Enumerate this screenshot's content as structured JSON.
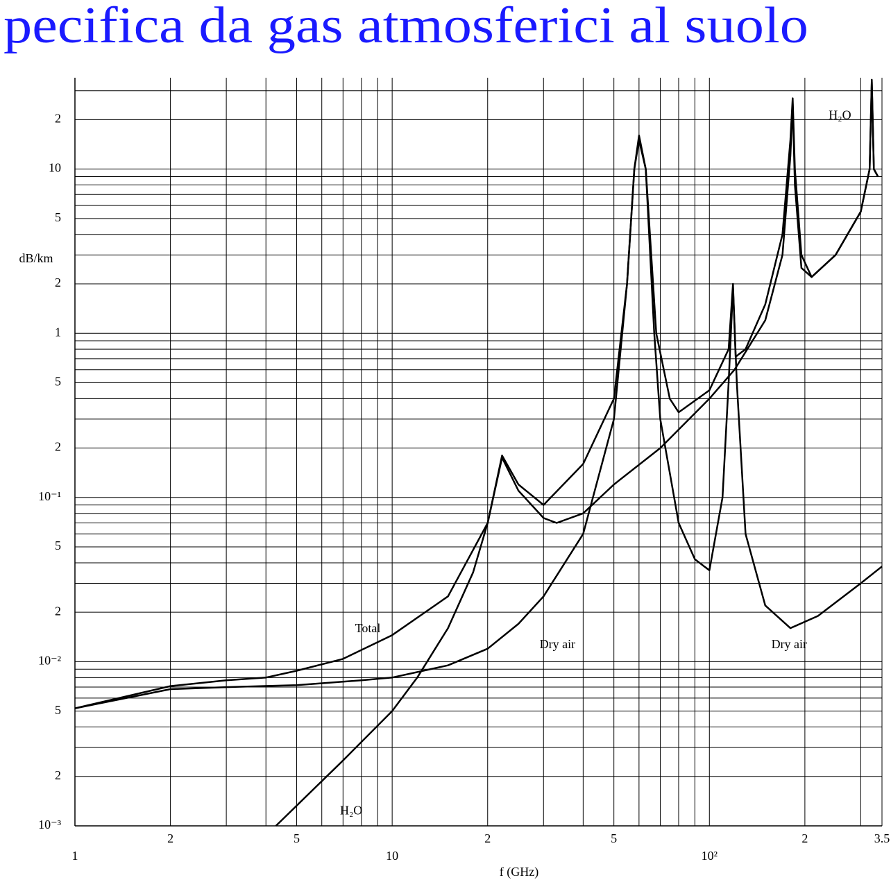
{
  "chart_data": {
    "type": "line",
    "title": "pecifica da gas atmosferici al suolo",
    "xlabel": "f (GHz)",
    "ylabel": "dB/km",
    "log_x": true,
    "log_y": true,
    "grid": true,
    "xlim": [
      1,
      350
    ],
    "ylim": [
      0.001,
      36
    ],
    "xticks": [
      1,
      2,
      5,
      10,
      {
        "value": 20,
        "label": "2"
      },
      {
        "value": 50,
        "label": "5"
      },
      {
        "value": 100,
        "label": "10²"
      },
      {
        "value": 200,
        "label": "2"
      },
      {
        "value": 350,
        "label": "3.5"
      }
    ],
    "xminor": [
      3,
      4,
      6,
      7,
      8,
      9,
      30,
      40,
      60,
      70,
      80,
      90,
      300
    ],
    "yticks": [
      {
        "value": 0.001,
        "label": "10⁻³"
      },
      {
        "value": 0.002,
        "label": "2"
      },
      {
        "value": 0.005,
        "label": "5"
      },
      {
        "value": 0.01,
        "label": "10⁻²"
      },
      {
        "value": 0.02,
        "label": "2"
      },
      {
        "value": 0.05,
        "label": "5"
      },
      {
        "value": 0.1,
        "label": "10⁻¹"
      },
      {
        "value": 0.2,
        "label": "2"
      },
      {
        "value": 0.5,
        "label": "5"
      },
      1,
      2,
      5,
      10,
      {
        "value": 20,
        "label": "2"
      }
    ],
    "yminor": [
      0.003,
      0.004,
      0.006,
      0.007,
      0.008,
      0.009,
      0.03,
      0.04,
      0.06,
      0.07,
      0.08,
      0.09,
      0.3,
      0.4,
      0.6,
      0.7,
      0.8,
      0.9,
      3,
      4,
      6,
      7,
      8,
      9,
      30
    ],
    "series": [
      {
        "color": "#000000",
        "x": [
          1,
          2,
          3,
          4,
          5,
          7,
          10,
          15,
          20,
          22.2,
          25,
          30,
          40,
          50,
          55,
          58,
          60,
          63,
          68,
          75,
          80,
          100,
          115,
          118.7,
          121,
          130,
          150,
          170,
          180,
          183,
          186,
          195,
          210,
          250,
          300,
          320,
          325,
          330,
          340
        ],
        "values": [
          0.0052,
          0.0071,
          0.0077,
          0.008,
          0.0088,
          0.0104,
          0.0145,
          0.025,
          0.07,
          0.18,
          0.12,
          0.09,
          0.16,
          0.4,
          2,
          10,
          16,
          10,
          1,
          0.4,
          0.33,
          0.45,
          0.8,
          2,
          0.72,
          0.8,
          1.5,
          4,
          15,
          27,
          10,
          3,
          2.2,
          3,
          5.5,
          10,
          35,
          10,
          9
        ]
      },
      {
        "color": "#000000",
        "x": [
          1,
          2,
          3,
          5,
          8,
          10,
          15,
          20,
          25,
          30,
          40,
          50,
          55,
          58,
          60,
          63,
          67,
          70,
          80,
          90,
          100,
          110,
          115,
          118.7,
          122,
          130,
          150,
          180,
          220,
          300,
          350
        ],
        "values": [
          0.0052,
          0.0068,
          0.007,
          0.0072,
          0.0077,
          0.008,
          0.0095,
          0.012,
          0.017,
          0.025,
          0.06,
          0.3,
          2,
          10,
          15,
          10,
          1,
          0.3,
          0.07,
          0.042,
          0.036,
          0.1,
          0.5,
          1.9,
          0.5,
          0.06,
          0.022,
          0.016,
          0.019,
          0.03,
          0.038
        ]
      },
      {
        "color": "#000000",
        "x": [
          4.3,
          7,
          10,
          12,
          15,
          18,
          20,
          22.2,
          25,
          30,
          33,
          40,
          50,
          70,
          100,
          120,
          150,
          170,
          180,
          183,
          186,
          195,
          210,
          250,
          300,
          320,
          325,
          330,
          340
        ],
        "values": [
          0.001,
          0.0025,
          0.005,
          0.008,
          0.016,
          0.035,
          0.07,
          0.175,
          0.11,
          0.075,
          0.07,
          0.08,
          0.12,
          0.2,
          0.4,
          0.6,
          1.2,
          3,
          12,
          25,
          8,
          2.5,
          2.2,
          3,
          5.5,
          10,
          34,
          10,
          9
        ]
      }
    ],
    "annotations": [
      {
        "text": "Total",
        "x": 8.38,
        "y": 0.0157
      },
      {
        "text": "Dry air",
        "x": 33.2,
        "y": 0.0126
      },
      {
        "text": "Dry air",
        "x": 178.5,
        "y": 0.0126
      },
      {
        "text": "H₂O",
        "x": 258,
        "y": 21
      },
      {
        "text": "H₂O",
        "x": 7.43,
        "y": 0.00122
      }
    ]
  }
}
